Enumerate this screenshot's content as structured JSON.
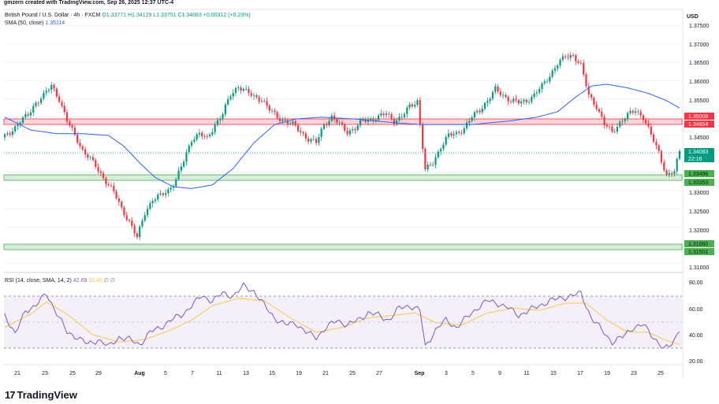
{
  "creator": "gmzern created with TradingView.com, Sep 26, 2025 12:37 UTC-4",
  "header": {
    "symbol": "British Pound / U.S. Dollar · 4h · FXCM",
    "ohlc": "O1.33771 H1.34129 L1.33751 C1.34083 +0.00312 (+0.23%)",
    "sma_label": "SMA (50, close)",
    "sma_value": "1.35114",
    "rsi_label": "RSI (14, close, SMA, 14, 2)",
    "rsi_value": "42.69",
    "rsi_sma_value": "30.45",
    "rsi_extra": "∅ ∅"
  },
  "axis": {
    "currency": "USD",
    "price_ticks": [
      "1.37500",
      "1.37000",
      "1.36500",
      "1.36000",
      "1.35500",
      "1.34500",
      "1.33000",
      "1.32500",
      "1.32000",
      "1.31000"
    ],
    "rsi_ticks": [
      "80.00",
      "60.00",
      "40.00",
      "20.00"
    ],
    "x_ticks": [
      "21",
      "23",
      "25",
      "29",
      "Aug",
      "5",
      "7",
      "11",
      "13",
      "15",
      "19",
      "21",
      "25",
      "27",
      "Sep",
      "3",
      "5",
      "9",
      "11",
      "15",
      "17",
      "19",
      "23",
      "25"
    ],
    "countdown": "22:16"
  },
  "zones": [
    {
      "name": "resistance",
      "top_label": "1.35008",
      "bottom_label": "1.34854",
      "color": "#f23645"
    },
    {
      "name": "support-1",
      "top_label": "1.33496",
      "bottom_label": "1.33353",
      "color": "#4caf50"
    },
    {
      "name": "support-2",
      "top_label": "1.31660",
      "bottom_label": "1.31501",
      "color": "#4caf50"
    }
  ],
  "last_price_label": "1.34083",
  "branding": "TradingView",
  "colors": {
    "up": "#089981",
    "down": "#f23645",
    "sma": "#2962ff",
    "rsi": "#7e57c2",
    "rsi_sma": "#f7c948"
  },
  "chart_data": {
    "type": "candlestick",
    "price_ylim": [
      1.308,
      1.379
    ],
    "rsi_ylim": [
      14,
      88
    ],
    "price_anchors": [
      [
        0,
        1.3445
      ],
      [
        3,
        1.3465
      ],
      [
        6,
        1.349
      ],
      [
        9,
        1.3505
      ],
      [
        12,
        1.354
      ],
      [
        15,
        1.356
      ],
      [
        18,
        1.3585
      ],
      [
        21,
        1.355
      ],
      [
        24,
        1.349
      ],
      [
        27,
        1.345
      ],
      [
        30,
        1.341
      ],
      [
        33,
        1.3385
      ],
      [
        36,
        1.3355
      ],
      [
        39,
        1.3325
      ],
      [
        42,
        1.3295
      ],
      [
        45,
        1.325
      ],
      [
        48,
        1.3215
      ],
      [
        51,
        1.317
      ],
      [
        54,
        1.324
      ],
      [
        57,
        1.3275
      ],
      [
        60,
        1.3285
      ],
      [
        63,
        1.33
      ],
      [
        66,
        1.333
      ],
      [
        69,
        1.338
      ],
      [
        72,
        1.344
      ],
      [
        75,
        1.3455
      ],
      [
        78,
        1.344
      ],
      [
        81,
        1.348
      ],
      [
        84,
        1.351
      ],
      [
        87,
        1.356
      ],
      [
        90,
        1.3585
      ],
      [
        93,
        1.357
      ],
      [
        96,
        1.3555
      ],
      [
        99,
        1.355
      ],
      [
        102,
        1.352
      ],
      [
        105,
        1.35
      ],
      [
        108,
        1.349
      ],
      [
        111,
        1.348
      ],
      [
        114,
        1.346
      ],
      [
        117,
        1.344
      ],
      [
        120,
        1.343
      ],
      [
        123,
        1.348
      ],
      [
        126,
        1.35
      ],
      [
        129,
        1.348
      ],
      [
        132,
        1.346
      ],
      [
        135,
        1.347
      ],
      [
        138,
        1.349
      ],
      [
        141,
        1.3495
      ],
      [
        144,
        1.35
      ],
      [
        147,
        1.351
      ],
      [
        150,
        1.349
      ],
      [
        153,
        1.35
      ],
      [
        156,
        1.353
      ],
      [
        159,
        1.3545
      ],
      [
        162,
        1.3355
      ],
      [
        165,
        1.3375
      ],
      [
        168,
        1.342
      ],
      [
        171,
        1.345
      ],
      [
        174,
        1.3455
      ],
      [
        177,
        1.347
      ],
      [
        180,
        1.35
      ],
      [
        183,
        1.352
      ],
      [
        186,
        1.3545
      ],
      [
        189,
        1.3575
      ],
      [
        192,
        1.356
      ],
      [
        195,
        1.3545
      ],
      [
        198,
        1.354
      ],
      [
        201,
        1.3545
      ],
      [
        204,
        1.356
      ],
      [
        207,
        1.3585
      ],
      [
        210,
        1.3615
      ],
      [
        213,
        1.3645
      ],
      [
        216,
        1.3665
      ],
      [
        219,
        1.367
      ],
      [
        222,
        1.364
      ],
      [
        225,
        1.356
      ],
      [
        228,
        1.353
      ],
      [
        231,
        1.348
      ],
      [
        234,
        1.346
      ],
      [
        237,
        1.3485
      ],
      [
        240,
        1.3505
      ],
      [
        243,
        1.352
      ],
      [
        246,
        1.35
      ],
      [
        249,
        1.345
      ],
      [
        252,
        1.3405
      ],
      [
        255,
        1.334
      ],
      [
        258,
        1.335
      ],
      [
        260,
        1.3408
      ]
    ],
    "sma_anchors": [
      [
        0,
        1.35
      ],
      [
        10,
        1.3465
      ],
      [
        20,
        1.3455
      ],
      [
        30,
        1.3455
      ],
      [
        40,
        1.345
      ],
      [
        46,
        1.342
      ],
      [
        52,
        1.3375
      ],
      [
        58,
        1.3335
      ],
      [
        65,
        1.331
      ],
      [
        72,
        1.3305
      ],
      [
        80,
        1.3315
      ],
      [
        88,
        1.336
      ],
      [
        96,
        1.343
      ],
      [
        104,
        1.348
      ],
      [
        112,
        1.3495
      ],
      [
        122,
        1.35
      ],
      [
        135,
        1.3495
      ],
      [
        150,
        1.3485
      ],
      [
        160,
        1.348
      ],
      [
        170,
        1.348
      ],
      [
        180,
        1.348
      ],
      [
        195,
        1.349
      ],
      [
        205,
        1.35
      ],
      [
        213,
        1.3515
      ],
      [
        220,
        1.3555
      ],
      [
        226,
        1.3585
      ],
      [
        232,
        1.359
      ],
      [
        240,
        1.358
      ],
      [
        248,
        1.3565
      ],
      [
        255,
        1.3545
      ],
      [
        260,
        1.3525
      ]
    ],
    "rsi_anchors": [
      [
        0,
        55
      ],
      [
        4,
        38
      ],
      [
        8,
        58
      ],
      [
        12,
        62
      ],
      [
        16,
        72
      ],
      [
        20,
        56
      ],
      [
        24,
        40
      ],
      [
        28,
        36
      ],
      [
        32,
        30
      ],
      [
        36,
        34
      ],
      [
        40,
        28
      ],
      [
        44,
        36
      ],
      [
        48,
        34
      ],
      [
        52,
        30
      ],
      [
        56,
        40
      ],
      [
        60,
        44
      ],
      [
        64,
        50
      ],
      [
        68,
        54
      ],
      [
        72,
        62
      ],
      [
        76,
        70
      ],
      [
        80,
        66
      ],
      [
        84,
        72
      ],
      [
        88,
        70
      ],
      [
        92,
        78
      ],
      [
        96,
        74
      ],
      [
        100,
        62
      ],
      [
        104,
        52
      ],
      [
        108,
        46
      ],
      [
        112,
        48
      ],
      [
        116,
        40
      ],
      [
        120,
        36
      ],
      [
        124,
        44
      ],
      [
        128,
        50
      ],
      [
        132,
        46
      ],
      [
        136,
        50
      ],
      [
        140,
        56
      ],
      [
        144,
        54
      ],
      [
        148,
        50
      ],
      [
        152,
        60
      ],
      [
        156,
        62
      ],
      [
        160,
        58
      ],
      [
        162,
        28
      ],
      [
        166,
        42
      ],
      [
        170,
        50
      ],
      [
        174,
        44
      ],
      [
        178,
        52
      ],
      [
        182,
        60
      ],
      [
        186,
        66
      ],
      [
        190,
        64
      ],
      [
        194,
        60
      ],
      [
        198,
        54
      ],
      [
        202,
        58
      ],
      [
        206,
        62
      ],
      [
        210,
        66
      ],
      [
        214,
        68
      ],
      [
        218,
        70
      ],
      [
        222,
        72
      ],
      [
        226,
        52
      ],
      [
        230,
        42
      ],
      [
        234,
        32
      ],
      [
        238,
        36
      ],
      [
        242,
        44
      ],
      [
        246,
        46
      ],
      [
        250,
        36
      ],
      [
        254,
        26
      ],
      [
        256,
        28
      ],
      [
        258,
        34
      ],
      [
        260,
        43
      ]
    ],
    "rsi_sma_anchors": [
      [
        0,
        44
      ],
      [
        10,
        55
      ],
      [
        16,
        65
      ],
      [
        24,
        55
      ],
      [
        34,
        38
      ],
      [
        44,
        32
      ],
      [
        54,
        34
      ],
      [
        64,
        42
      ],
      [
        72,
        50
      ],
      [
        80,
        62
      ],
      [
        90,
        68
      ],
      [
        100,
        66
      ],
      [
        110,
        52
      ],
      [
        120,
        40
      ],
      [
        130,
        44
      ],
      [
        140,
        52
      ],
      [
        150,
        54
      ],
      [
        158,
        56
      ],
      [
        166,
        48
      ],
      [
        176,
        46
      ],
      [
        186,
        56
      ],
      [
        196,
        60
      ],
      [
        206,
        58
      ],
      [
        216,
        64
      ],
      [
        224,
        64
      ],
      [
        232,
        50
      ],
      [
        240,
        40
      ],
      [
        248,
        40
      ],
      [
        254,
        34
      ],
      [
        260,
        30
      ]
    ],
    "levels": {
      "overbought": 70,
      "middle": 50,
      "oversold": 30
    }
  }
}
